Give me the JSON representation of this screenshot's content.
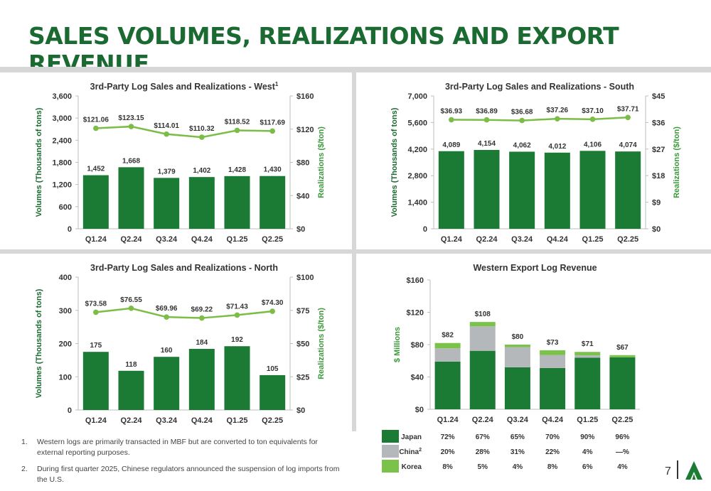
{
  "title": "SALES VOLUMES, REALIZATIONS AND EXPORT REVENUE",
  "colors": {
    "title_green": "#1b6a31",
    "bar_green": "#1b7a34",
    "line_green": "#7bbd47",
    "axis_label_green": "#3a9a3a",
    "china_gray": "#b5b8bb",
    "korea_green": "#7bc24b",
    "divider_gray": "#d7d7d7"
  },
  "chart_data": [
    {
      "type": "bar",
      "title": "3rd-Party Log Sales and Realizations - West",
      "title_sup": "1",
      "categories": [
        "Q1.24",
        "Q2.24",
        "Q3.24",
        "Q4.24",
        "Q1.25",
        "Q2.25"
      ],
      "ylabel": "Volumes (Thousands of tons)",
      "y2label": "Realizations ($/ton)",
      "ylim": [
        0,
        3600
      ],
      "y2lim": [
        0,
        160
      ],
      "yticks": [
        "0",
        "600",
        "1,200",
        "1,800",
        "2,400",
        "3,000",
        "3,600"
      ],
      "y2ticks": [
        "$0",
        "$40",
        "$80",
        "$120",
        "$160"
      ],
      "series": [
        {
          "kind": "bar",
          "values": [
            1452,
            1668,
            1379,
            1402,
            1428,
            1430
          ],
          "labels": [
            "1,452",
            "1,668",
            "1,379",
            "1,402",
            "1,428",
            "1,430"
          ]
        },
        {
          "kind": "line",
          "values": [
            121.06,
            123.15,
            114.01,
            110.32,
            118.52,
            117.69
          ],
          "labels": [
            "$121.06",
            "$123.15",
            "$114.01",
            "$110.32",
            "$118.52",
            "$117.69"
          ]
        }
      ]
    },
    {
      "type": "bar",
      "title": "3rd-Party Log Sales and Realizations - South",
      "categories": [
        "Q1.24",
        "Q2.24",
        "Q3.24",
        "Q4.24",
        "Q1.25",
        "Q2.25"
      ],
      "ylabel": "Volumes (Thousands of tons)",
      "y2label": "Realizations ($/ton)",
      "ylim": [
        0,
        7000
      ],
      "y2lim": [
        0,
        45
      ],
      "yticks": [
        "0",
        "1,400",
        "2,800",
        "4,200",
        "5,600",
        "7,000"
      ],
      "y2ticks": [
        "$0",
        "$9",
        "$18",
        "$27",
        "$36",
        "$45"
      ],
      "series": [
        {
          "kind": "bar",
          "values": [
            4089,
            4154,
            4062,
            4012,
            4106,
            4074
          ],
          "labels": [
            "4,089",
            "4,154",
            "4,062",
            "4,012",
            "4,106",
            "4,074"
          ]
        },
        {
          "kind": "line",
          "values": [
            36.93,
            36.89,
            36.68,
            37.26,
            37.1,
            37.71
          ],
          "labels": [
            "$36.93",
            "$36.89",
            "$36.68",
            "$37.26",
            "$37.10",
            "$37.71"
          ]
        }
      ]
    },
    {
      "type": "bar",
      "title": "3rd-Party Log Sales and Realizations - North",
      "categories": [
        "Q1.24",
        "Q2.24",
        "Q3.24",
        "Q4.24",
        "Q1.25",
        "Q2.25"
      ],
      "ylabel": "Volumes (Thousands of tons)",
      "y2label": "Realizations ($/ton)",
      "ylim": [
        0,
        400
      ],
      "y2lim": [
        0,
        100
      ],
      "yticks": [
        "0",
        "100",
        "200",
        "300",
        "400"
      ],
      "y2ticks": [
        "$0",
        "$25",
        "$50",
        "$75",
        "$100"
      ],
      "series": [
        {
          "kind": "bar",
          "values": [
            175,
            118,
            160,
            184,
            192,
            105
          ],
          "labels": [
            "175",
            "118",
            "160",
            "184",
            "192",
            "105"
          ]
        },
        {
          "kind": "line",
          "values": [
            73.58,
            76.55,
            69.96,
            69.22,
            71.43,
            74.3
          ],
          "labels": [
            "$73.58",
            "$76.55",
            "$69.96",
            "$69.22",
            "$71.43",
            "$74.30"
          ]
        }
      ]
    },
    {
      "type": "bar",
      "stacked": true,
      "title": "Western Export Log Revenue",
      "categories": [
        "Q1.24",
        "Q2.24",
        "Q3.24",
        "Q4.24",
        "Q1.25",
        "Q2.25"
      ],
      "ylabel": "$ Millions",
      "ylim": [
        0,
        160
      ],
      "yticks": [
        "$0",
        "$40",
        "$80",
        "$120",
        "$160"
      ],
      "totals": [
        82,
        108,
        80,
        73,
        71,
        67
      ],
      "total_labels": [
        "$82",
        "$108",
        "$80",
        "$73",
        "$71",
        "$67"
      ],
      "series": [
        {
          "name": "Japan",
          "color": "#1b7a34",
          "share": [
            72,
            67,
            65,
            70,
            90,
            96
          ],
          "share_labels": [
            "72%",
            "67%",
            "65%",
            "70%",
            "90%",
            "96%"
          ]
        },
        {
          "name": "China",
          "name_sup": "2",
          "color": "#b5b8bb",
          "share": [
            20,
            28,
            31,
            22,
            4,
            0
          ],
          "share_labels": [
            "20%",
            "28%",
            "31%",
            "22%",
            "4%",
            "—%"
          ]
        },
        {
          "name": "Korea",
          "color": "#7bc24b",
          "share": [
            8,
            5,
            4,
            8,
            6,
            4
          ],
          "share_labels": [
            "8%",
            "5%",
            "4%",
            "8%",
            "6%",
            "4%"
          ]
        }
      ]
    }
  ],
  "footnotes": [
    {
      "num": "1.",
      "text": "Western logs are primarily transacted in MBF but are converted to ton equivalents for external reporting purposes."
    },
    {
      "num": "2.",
      "text": "During first quarter 2025, Chinese regulators announced the suspension of log imports from the U.S."
    }
  ],
  "page_number": "7",
  "logo_icon": "tree-logo-icon"
}
